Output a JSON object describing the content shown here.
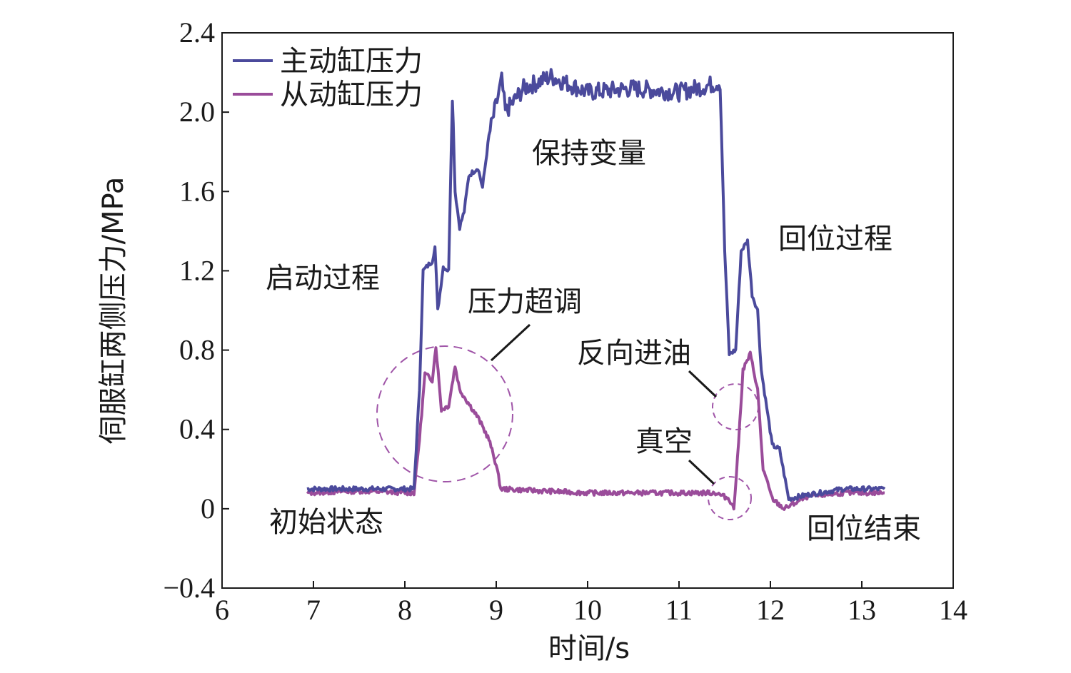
{
  "chart_data": {
    "type": "line",
    "title": "",
    "xlabel": "时间/s",
    "ylabel": "伺服缸两侧压力/MPa",
    "xlim": [
      6,
      14
    ],
    "ylim": [
      -0.4,
      2.4
    ],
    "x_ticks": [
      "6",
      "7",
      "8",
      "9",
      "10",
      "11",
      "12",
      "13",
      "14"
    ],
    "y_ticks": [
      "−0.4",
      "0",
      "0.4",
      "0.8",
      "1.2",
      "1.6",
      "2.0",
      "2.4"
    ],
    "grid": false,
    "legend_position": "top-left",
    "colors": {
      "master": "#4b4a9c",
      "slave": "#9a4c9a"
    },
    "series": [
      {
        "name": "主动缸压力",
        "color": "#4b4a9c",
        "points": [
          [
            6.93,
            0.1
          ],
          [
            7.5,
            0.1
          ],
          [
            8.1,
            0.1
          ],
          [
            8.16,
            0.6
          ],
          [
            8.2,
            1.2
          ],
          [
            8.3,
            1.25
          ],
          [
            8.33,
            1.32
          ],
          [
            8.36,
            1.0
          ],
          [
            8.42,
            1.22
          ],
          [
            8.48,
            1.2
          ],
          [
            8.52,
            2.1
          ],
          [
            8.55,
            1.6
          ],
          [
            8.6,
            1.42
          ],
          [
            8.65,
            1.5
          ],
          [
            8.7,
            1.68
          ],
          [
            8.8,
            1.72
          ],
          [
            8.85,
            1.62
          ],
          [
            8.92,
            1.88
          ],
          [
            9.02,
            2.08
          ],
          [
            9.06,
            2.16
          ],
          [
            9.1,
            2.0
          ],
          [
            9.3,
            2.12
          ],
          [
            9.6,
            2.18
          ],
          [
            10.0,
            2.1
          ],
          [
            10.5,
            2.12
          ],
          [
            11.0,
            2.1
          ],
          [
            11.45,
            2.15
          ],
          [
            11.5,
            1.3
          ],
          [
            11.55,
            0.78
          ],
          [
            11.62,
            0.8
          ],
          [
            11.68,
            1.3
          ],
          [
            11.75,
            1.35
          ],
          [
            11.8,
            1.08
          ],
          [
            11.86,
            1.0
          ],
          [
            11.9,
            0.7
          ],
          [
            12.02,
            0.32
          ],
          [
            12.1,
            0.3
          ],
          [
            12.2,
            0.05
          ],
          [
            12.4,
            0.07
          ],
          [
            12.8,
            0.1
          ],
          [
            13.25,
            0.1
          ]
        ]
      },
      {
        "name": "从动缸压力",
        "color": "#9a4c9a",
        "points": [
          [
            6.93,
            0.08
          ],
          [
            7.5,
            0.09
          ],
          [
            8.1,
            0.08
          ],
          [
            8.16,
            0.35
          ],
          [
            8.22,
            0.68
          ],
          [
            8.3,
            0.65
          ],
          [
            8.34,
            0.82
          ],
          [
            8.4,
            0.5
          ],
          [
            8.48,
            0.52
          ],
          [
            8.55,
            0.72
          ],
          [
            8.6,
            0.6
          ],
          [
            8.8,
            0.46
          ],
          [
            8.92,
            0.35
          ],
          [
            9.0,
            0.22
          ],
          [
            9.05,
            0.1
          ],
          [
            9.5,
            0.09
          ],
          [
            10.0,
            0.08
          ],
          [
            10.5,
            0.08
          ],
          [
            11.0,
            0.08
          ],
          [
            11.4,
            0.08
          ],
          [
            11.55,
            0.05
          ],
          [
            11.6,
            0.0
          ],
          [
            11.64,
            0.25
          ],
          [
            11.7,
            0.7
          ],
          [
            11.78,
            0.78
          ],
          [
            11.86,
            0.6
          ],
          [
            11.92,
            0.2
          ],
          [
            12.02,
            0.05
          ],
          [
            12.15,
            0.0
          ],
          [
            12.4,
            0.06
          ],
          [
            12.8,
            0.08
          ],
          [
            13.25,
            0.08
          ]
        ]
      }
    ],
    "annotations": [
      "启动过程",
      "压力超调",
      "保持变量",
      "回位过程",
      "反向进油",
      "真空",
      "初始状态",
      "回位结束"
    ]
  }
}
